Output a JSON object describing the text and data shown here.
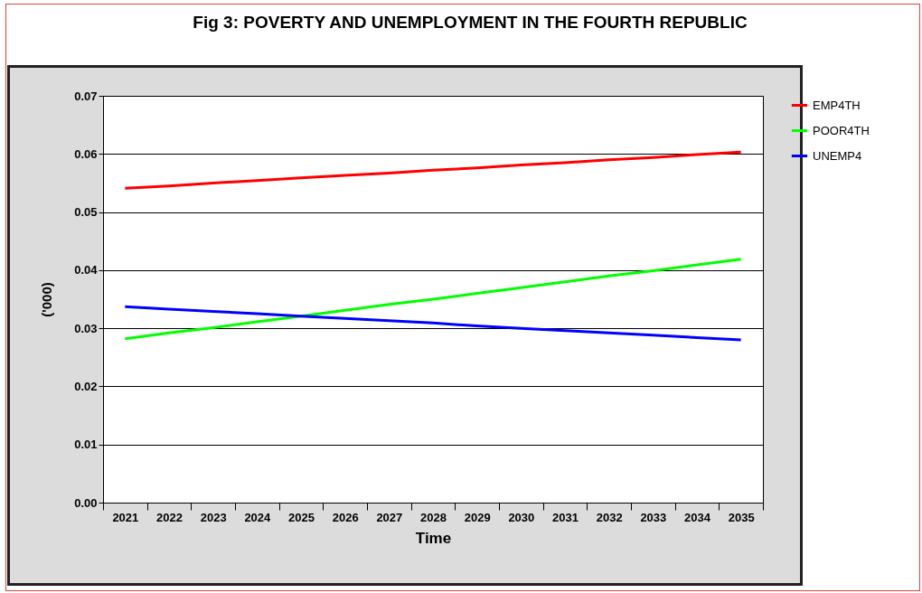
{
  "chart_data": {
    "type": "line",
    "title": "Fig 3:  POVERTY AND UNEMPLOYMENT IN THE FOURTH REPUBLIC",
    "xlabel": "Time",
    "ylabel": "('000)",
    "categories": [
      "2021",
      "2022",
      "2023",
      "2024",
      "2025",
      "2026",
      "2027",
      "2028",
      "2029",
      "2030",
      "2031",
      "2032",
      "2033",
      "2034",
      "2035"
    ],
    "series": [
      {
        "name": "EMP4TH",
        "color": "#ff0000",
        "values": [
          0.0541,
          0.0545,
          0.055,
          0.0554,
          0.0559,
          0.0563,
          0.0567,
          0.0572,
          0.0576,
          0.0581,
          0.0585,
          0.059,
          0.0594,
          0.0599,
          0.0603
        ]
      },
      {
        "name": "POOR4TH",
        "color": "#00ff00",
        "values": [
          0.0282,
          0.0292,
          0.0301,
          0.0311,
          0.0321,
          0.0331,
          0.0341,
          0.035,
          0.036,
          0.037,
          0.038,
          0.039,
          0.0399,
          0.0409,
          0.0419
        ]
      },
      {
        "name": "UNEMP4",
        "color": "#0000ff",
        "values": [
          0.0337,
          0.0333,
          0.0329,
          0.0325,
          0.0321,
          0.0317,
          0.0313,
          0.0309,
          0.0304,
          0.03,
          0.0296,
          0.0292,
          0.0288,
          0.0284,
          0.028
        ]
      }
    ],
    "ylim": [
      0,
      0.07
    ],
    "yticks": [
      {
        "value": 0,
        "label": "0.00"
      },
      0.01,
      0.02,
      0.03,
      0.04,
      0.05,
      0.06,
      0.07
    ],
    "grid": "y",
    "legend": "right",
    "marker": "none",
    "line_style": "solid"
  }
}
